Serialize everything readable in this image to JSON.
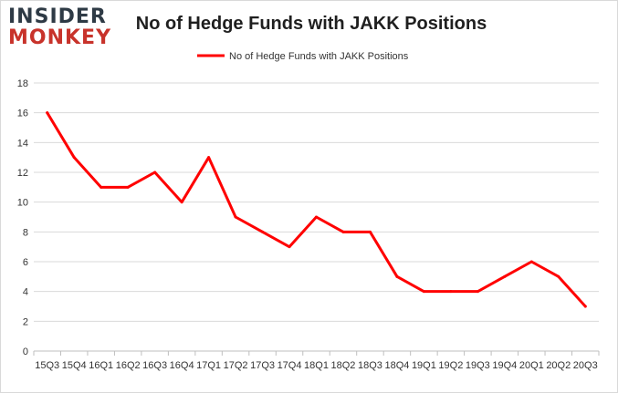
{
  "brand": {
    "line1": "INSIDER",
    "line2": "MONKEY",
    "color_dark": "#2e3a45",
    "color_red": "#c8332b"
  },
  "chart_data": {
    "type": "line",
    "title": "No of Hedge Funds with JAKK Positions",
    "xlabel": "",
    "ylabel": "",
    "categories": [
      "15Q3",
      "15Q4",
      "16Q1",
      "16Q2",
      "16Q3",
      "16Q4",
      "17Q1",
      "17Q2",
      "17Q3",
      "17Q4",
      "18Q1",
      "18Q2",
      "18Q3",
      "18Q4",
      "19Q1",
      "19Q2",
      "19Q3",
      "19Q4",
      "20Q1",
      "20Q2",
      "20Q3"
    ],
    "series": [
      {
        "name": "No of Hedge Funds with JAKK Positions",
        "color": "#ff0000",
        "values": [
          16,
          13,
          11,
          11,
          12,
          10,
          13,
          9,
          8,
          7,
          9,
          8,
          8,
          5,
          4,
          4,
          4,
          5,
          6,
          5,
          3
        ]
      }
    ],
    "ylim": [
      0,
      18
    ],
    "yticks": [
      0,
      2,
      4,
      6,
      8,
      10,
      12,
      14,
      16,
      18
    ],
    "grid": true,
    "legend": "top-center"
  }
}
